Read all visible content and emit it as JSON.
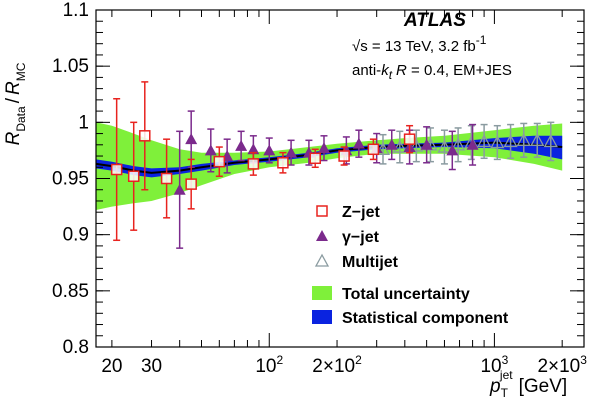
{
  "chart_data": {
    "type": "scatter",
    "title": "ATLAS",
    "annotations": [
      "√s = 13 TeV, 3.2 fb⁻¹",
      "anti-kt R = 0.4, EM+JES"
    ],
    "info": {
      "energy_prefix": "√s = 13 TeV, 3.2 fb",
      "energy_exp": "-1",
      "alg_prefix": "anti-",
      "alg_k": "k",
      "alg_t": "t",
      "alg_R": "R",
      "alg_suffix": " = 0.4, EM+JES"
    },
    "xlabel": "p_T^jet [GeV]",
    "xlabel_parts": {
      "p": "p",
      "sub": "T",
      "sup": "jet",
      "unit": "[GeV]"
    },
    "ylabel": "R_Data / R_MC",
    "ylabel_parts": {
      "r1": "R",
      "sub1": "Data",
      "slash": "/",
      "r2": "R",
      "sub2": "MC"
    },
    "x_scale": "log",
    "xlim": [
      17,
      2500
    ],
    "ylim": [
      0.8,
      1.1
    ],
    "x_ticks": [
      {
        "value": 20,
        "label": "20"
      },
      {
        "value": 30,
        "label": "30"
      },
      {
        "value": 100,
        "label": "10",
        "exp": "2"
      },
      {
        "value": 200,
        "label": "2×10",
        "exp": "2"
      },
      {
        "value": 1000,
        "label": "10",
        "exp": "3"
      },
      {
        "value": 2000,
        "label": "2×10",
        "exp": "3"
      }
    ],
    "y_ticks": [
      {
        "value": 0.8,
        "label": "0.8"
      },
      {
        "value": 0.85,
        "label": "0.85"
      },
      {
        "value": 0.9,
        "label": "0.9"
      },
      {
        "value": 0.95,
        "label": "0.95"
      },
      {
        "value": 1.0,
        "label": "1"
      },
      {
        "value": 1.05,
        "label": "1.05"
      },
      {
        "value": 1.1,
        "label": "1.1"
      }
    ],
    "calibration_curve": {
      "x": [
        17,
        20,
        25,
        30,
        40,
        50,
        70,
        100,
        150,
        200,
        300,
        400,
        600,
        1000,
        1500,
        2000
      ],
      "y": [
        0.963,
        0.961,
        0.957,
        0.955,
        0.957,
        0.96,
        0.964,
        0.967,
        0.971,
        0.975,
        0.978,
        0.979,
        0.98,
        0.982,
        0.98,
        0.978
      ]
    },
    "total_uncertainty": {
      "x": [
        17,
        20,
        25,
        30,
        40,
        50,
        70,
        100,
        150,
        200,
        300,
        400,
        600,
        1000,
        1500,
        2000
      ],
      "up": [
        1.0,
        0.997,
        0.99,
        0.984,
        0.976,
        0.973,
        0.973,
        0.974,
        0.978,
        0.981,
        0.984,
        0.986,
        0.988,
        0.993,
        0.997,
        0.999
      ],
      "down": [
        0.922,
        0.925,
        0.928,
        0.93,
        0.937,
        0.944,
        0.954,
        0.96,
        0.964,
        0.968,
        0.972,
        0.972,
        0.972,
        0.969,
        0.963,
        0.957
      ]
    },
    "statistical_component": {
      "x": [
        17,
        20,
        25,
        30,
        40,
        50,
        70,
        100,
        150,
        200,
        300,
        400,
        600,
        1000,
        1500,
        2000
      ],
      "up": [
        0.967,
        0.965,
        0.961,
        0.959,
        0.96,
        0.963,
        0.966,
        0.969,
        0.973,
        0.977,
        0.98,
        0.981,
        0.982,
        0.986,
        0.988,
        0.988
      ],
      "down": [
        0.959,
        0.957,
        0.953,
        0.951,
        0.954,
        0.957,
        0.962,
        0.965,
        0.969,
        0.973,
        0.976,
        0.977,
        0.978,
        0.977,
        0.972,
        0.967
      ]
    },
    "series": [
      {
        "name": "Z−jet",
        "marker": "open-square",
        "color": "#e8231f",
        "points": [
          {
            "x": 21,
            "y": 0.958,
            "err": 0.063
          },
          {
            "x": 25,
            "y": 0.952,
            "err": 0.048
          },
          {
            "x": 28,
            "y": 0.988,
            "err": 0.048
          },
          {
            "x": 35,
            "y": 0.95,
            "err": 0.035
          },
          {
            "x": 45,
            "y": 0.945,
            "err": 0.022
          },
          {
            "x": 60,
            "y": 0.965,
            "err": 0.013
          },
          {
            "x": 85,
            "y": 0.963,
            "err": 0.01
          },
          {
            "x": 115,
            "y": 0.964,
            "err": 0.009
          },
          {
            "x": 160,
            "y": 0.968,
            "err": 0.008
          },
          {
            "x": 215,
            "y": 0.97,
            "err": 0.008
          },
          {
            "x": 290,
            "y": 0.976,
            "err": 0.009
          },
          {
            "x": 420,
            "y": 0.985,
            "err": 0.012
          }
        ]
      },
      {
        "name": "γ−jet",
        "marker": "filled-triangle",
        "color": "#7b2a8c",
        "points": [
          {
            "x": 40,
            "y": 0.94,
            "err": 0.052
          },
          {
            "x": 45,
            "y": 0.985,
            "err": 0.025
          },
          {
            "x": 55,
            "y": 0.975,
            "err": 0.019
          },
          {
            "x": 65,
            "y": 0.97,
            "err": 0.015
          },
          {
            "x": 75,
            "y": 0.979,
            "err": 0.013
          },
          {
            "x": 85,
            "y": 0.976,
            "err": 0.012
          },
          {
            "x": 100,
            "y": 0.975,
            "err": 0.011
          },
          {
            "x": 125,
            "y": 0.973,
            "err": 0.011
          },
          {
            "x": 150,
            "y": 0.973,
            "err": 0.011
          },
          {
            "x": 175,
            "y": 0.977,
            "err": 0.011
          },
          {
            "x": 220,
            "y": 0.975,
            "err": 0.012
          },
          {
            "x": 250,
            "y": 0.981,
            "err": 0.012
          },
          {
            "x": 300,
            "y": 0.977,
            "err": 0.013
          },
          {
            "x": 350,
            "y": 0.98,
            "err": 0.013
          },
          {
            "x": 420,
            "y": 0.978,
            "err": 0.015
          },
          {
            "x": 500,
            "y": 0.98,
            "err": 0.016
          },
          {
            "x": 650,
            "y": 0.975,
            "err": 0.017
          },
          {
            "x": 800,
            "y": 0.98,
            "err": 0.018
          }
        ]
      },
      {
        "name": "Multijet",
        "marker": "open-triangle",
        "color": "#8a9ba0",
        "points": [
          {
            "x": 320,
            "y": 0.976,
            "err": 0.013
          },
          {
            "x": 380,
            "y": 0.978,
            "err": 0.014
          },
          {
            "x": 450,
            "y": 0.979,
            "err": 0.014
          },
          {
            "x": 520,
            "y": 0.98,
            "err": 0.015
          },
          {
            "x": 600,
            "y": 0.978,
            "err": 0.015
          },
          {
            "x": 690,
            "y": 0.98,
            "err": 0.015
          },
          {
            "x": 790,
            "y": 0.982,
            "err": 0.015
          },
          {
            "x": 900,
            "y": 0.983,
            "err": 0.015
          },
          {
            "x": 1030,
            "y": 0.982,
            "err": 0.015
          },
          {
            "x": 1180,
            "y": 0.983,
            "err": 0.015
          },
          {
            "x": 1350,
            "y": 0.984,
            "err": 0.015
          },
          {
            "x": 1550,
            "y": 0.984,
            "err": 0.015
          },
          {
            "x": 1780,
            "y": 0.983,
            "err": 0.017
          }
        ]
      }
    ],
    "legend": [
      {
        "label": "Z−jet",
        "marker": "open-square",
        "color": "#e8231f"
      },
      {
        "label": "γ−jet",
        "marker": "filled-triangle",
        "color": "#7b2a8c"
      },
      {
        "label": "Multijet",
        "marker": "open-triangle",
        "color": "#8a9ba0"
      },
      {
        "label": "Total uncertainty",
        "marker": "band",
        "color": "#7ff03a"
      },
      {
        "label": "Statistical component",
        "marker": "band",
        "color": "#0a23e0"
      }
    ],
    "band_colors": {
      "total": "#7ff03a",
      "stat": "#0a23e0",
      "curve": "#000000"
    },
    "grid": false,
    "legend_position": "center-right"
  }
}
